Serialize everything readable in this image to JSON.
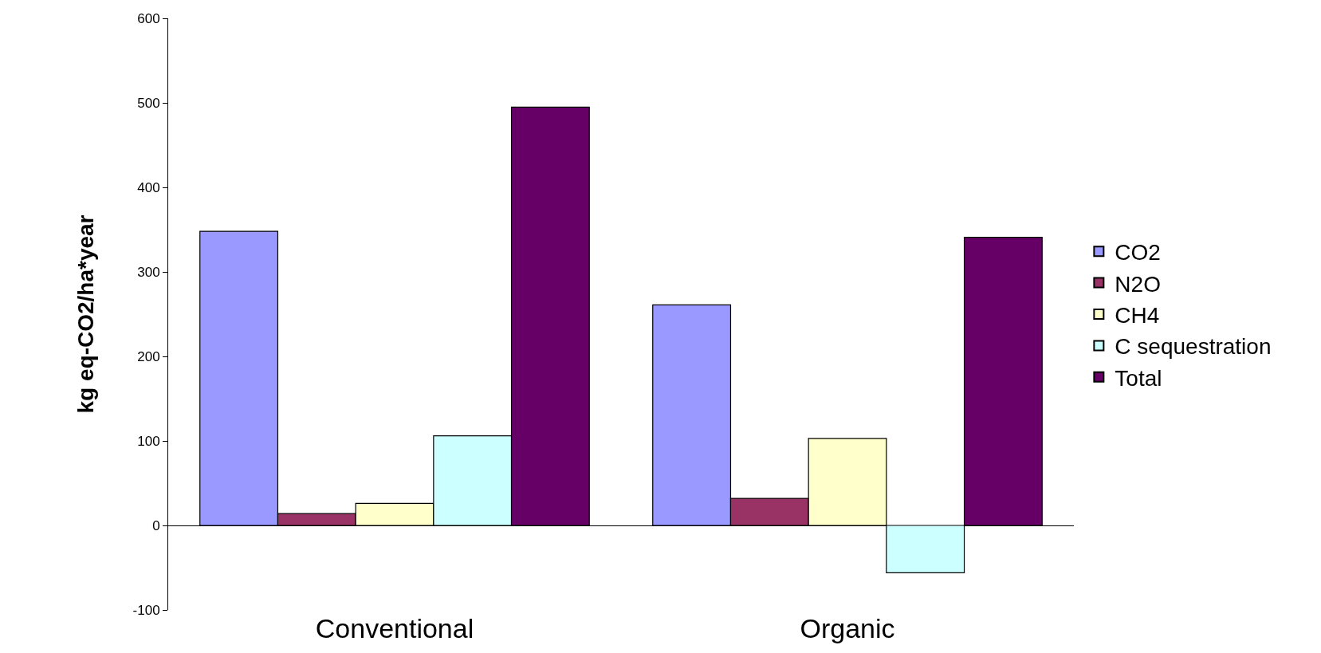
{
  "chart_data": {
    "type": "bar",
    "ylabel": "kg eq-CO2/ha*year",
    "categories": [
      "Conventional",
      "Organic"
    ],
    "series": [
      {
        "name": "CO2",
        "color": "#9999ff",
        "values": [
          348,
          261
        ]
      },
      {
        "name": "N2O",
        "color": "#993366",
        "values": [
          14,
          32
        ]
      },
      {
        "name": "CH4",
        "color": "#ffffcc",
        "values": [
          26,
          103
        ]
      },
      {
        "name": "C sequestration",
        "color": "#ccffff",
        "values": [
          106,
          -56
        ]
      },
      {
        "name": "Total",
        "color": "#660066",
        "values": [
          495,
          341
        ]
      }
    ],
    "ylim": [
      -100,
      600
    ],
    "yticks": [
      -100,
      0,
      100,
      200,
      300,
      400,
      500,
      600
    ],
    "legend": "right"
  }
}
